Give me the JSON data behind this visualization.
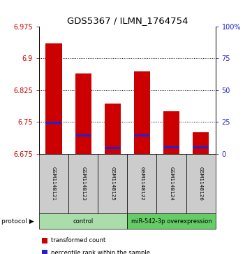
{
  "title": "GDS5367 / ILMN_1764754",
  "samples": [
    "GSM1148121",
    "GSM1148123",
    "GSM1148125",
    "GSM1148122",
    "GSM1148124",
    "GSM1148126"
  ],
  "transformed_counts": [
    6.935,
    6.865,
    6.793,
    6.87,
    6.775,
    6.725
  ],
  "percentile_ranks": [
    6.748,
    6.718,
    6.688,
    6.718,
    6.69,
    6.69
  ],
  "ymin": 6.675,
  "ymax": 6.975,
  "ytick_labels": [
    "6.675",
    "6.75",
    "6.825",
    "6.9",
    "6.975"
  ],
  "ytick_vals": [
    6.675,
    6.75,
    6.825,
    6.9,
    6.975
  ],
  "right_tick_labels": [
    "0",
    "25",
    "50",
    "75",
    "100%"
  ],
  "right_tick_vals": [
    6.675,
    6.75,
    6.825,
    6.9,
    6.975
  ],
  "grid_vals": [
    6.75,
    6.825,
    6.9
  ],
  "bar_color": "#cc0000",
  "percentile_color": "#2222cc",
  "protocol_groups": [
    {
      "label": "control",
      "start": 0,
      "end": 3,
      "color": "#aaddaa"
    },
    {
      "label": "miR-542-3p overexpression",
      "start": 3,
      "end": 6,
      "color": "#66cc66"
    }
  ],
  "legend_items": [
    {
      "label": "transformed count",
      "color": "#cc0000"
    },
    {
      "label": "percentile rank within the sample",
      "color": "#2222cc"
    }
  ],
  "title_fontsize": 9.5,
  "tick_fontsize": 7,
  "sample_fontsize": 5.2,
  "proto_fontsize": 6,
  "legend_fontsize": 6
}
